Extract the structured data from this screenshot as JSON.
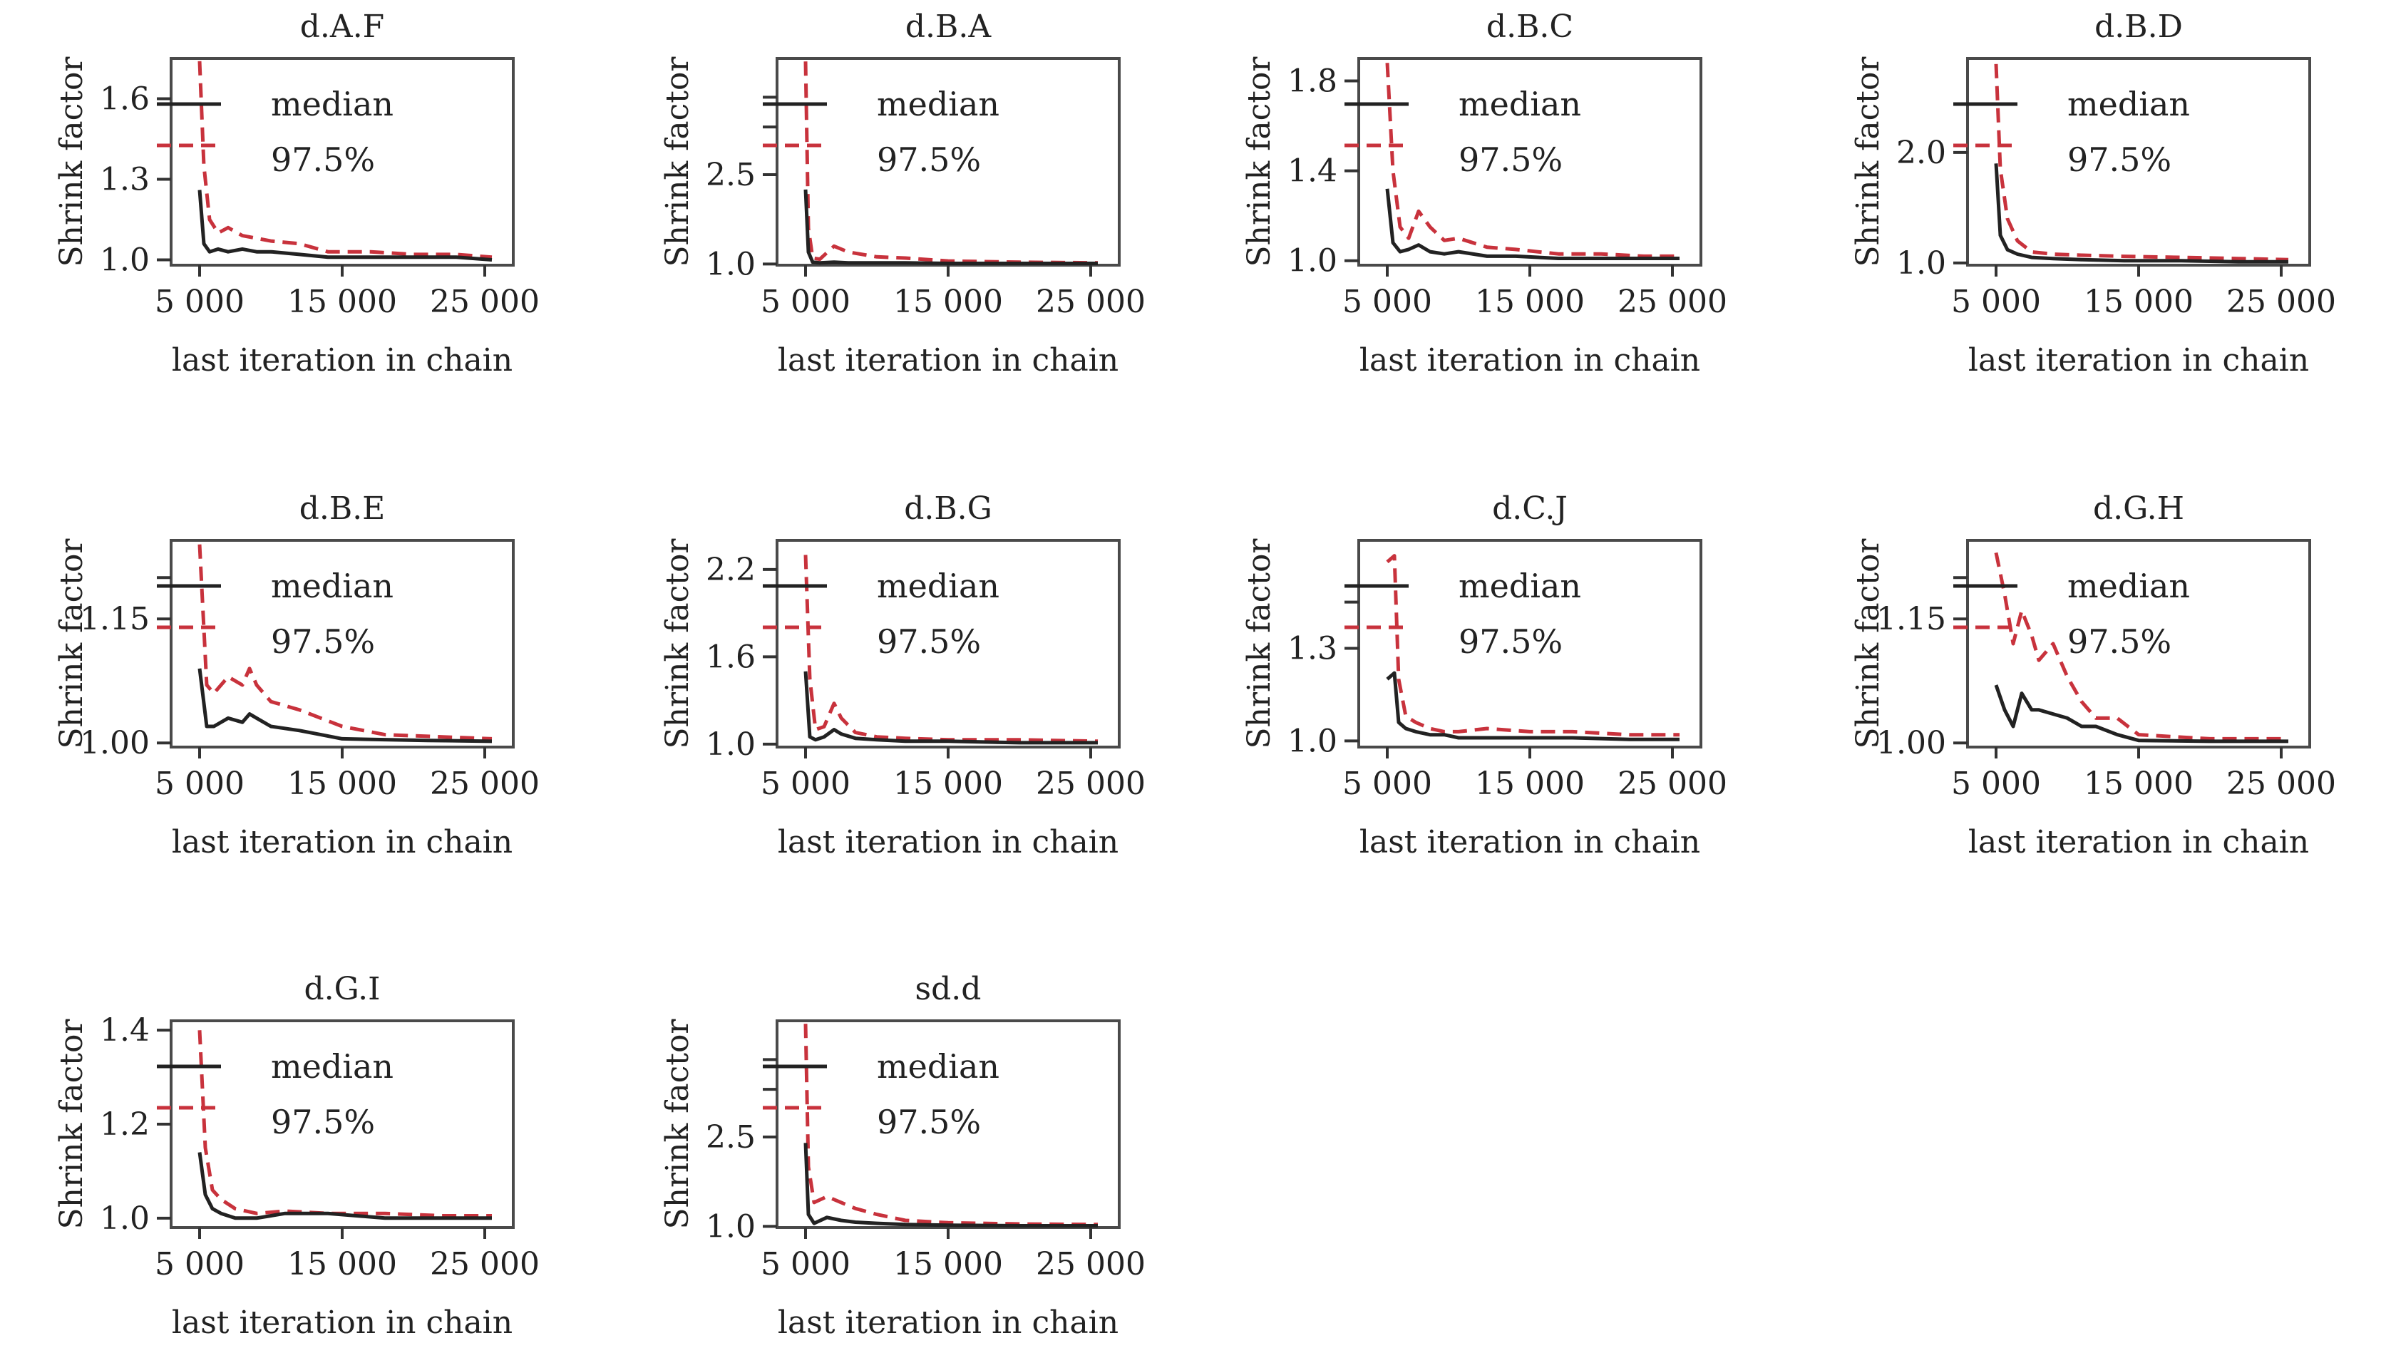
{
  "colors": {
    "median": "#222222",
    "q975": "#c8323c",
    "frame": "#4a4a4a"
  },
  "chart_data": [
    {
      "type": "line",
      "title": "d.A.F",
      "xlabel": "last iteration in chain",
      "ylabel": "Shrink factor",
      "xlim": [
        3000,
        27000
      ],
      "ylim": [
        0.98,
        1.75
      ],
      "xticks": [
        5000,
        15000,
        25000
      ],
      "xtick_labels": [
        "5 000",
        "15 000",
        "25 000"
      ],
      "yticks": [
        1.0,
        1.3,
        1.6
      ],
      "ytick_labels": [
        "1.0",
        "1.3",
        "1.6"
      ],
      "ytick_minor": [],
      "legend": {
        "position": "top-left",
        "entries": [
          "median",
          "97.5%"
        ]
      },
      "x": [
        5000,
        5300,
        5700,
        6300,
        7000,
        8000,
        9000,
        10000,
        12000,
        14000,
        17000,
        20000,
        23000,
        25500
      ],
      "series": [
        {
          "name": "median",
          "values": [
            1.26,
            1.06,
            1.03,
            1.04,
            1.03,
            1.04,
            1.03,
            1.03,
            1.02,
            1.01,
            1.01,
            1.01,
            1.01,
            1.0
          ]
        },
        {
          "name": "97.5%",
          "values": [
            1.74,
            1.35,
            1.15,
            1.1,
            1.12,
            1.09,
            1.08,
            1.07,
            1.06,
            1.03,
            1.03,
            1.02,
            1.02,
            1.01
          ]
        }
      ]
    },
    {
      "type": "line",
      "title": "d.B.A",
      "xlabel": "last iteration in chain",
      "ylabel": "Shrink factor",
      "xlim": [
        3000,
        27000
      ],
      "ylim": [
        0.98,
        4.45
      ],
      "xticks": [
        5000,
        15000,
        25000
      ],
      "xtick_labels": [
        "5 000",
        "15 000",
        "25 000"
      ],
      "yticks": [
        1.0,
        2.5
      ],
      "ytick_labels": [
        "1.0",
        "2.5"
      ],
      "ytick_minor": [
        3.3,
        3.8
      ],
      "legend": {
        "position": "top-left",
        "entries": [
          "median",
          "97.5%"
        ]
      },
      "x": [
        5000,
        5200,
        5500,
        6000,
        7000,
        8000,
        10000,
        12000,
        15000,
        20000,
        25500
      ],
      "series": [
        {
          "name": "median",
          "values": [
            2.25,
            1.2,
            1.03,
            1.02,
            1.03,
            1.02,
            1.02,
            1.02,
            1.01,
            1.01,
            1.01
          ]
        },
        {
          "name": "97.5%",
          "values": [
            4.4,
            1.6,
            1.1,
            1.08,
            1.3,
            1.2,
            1.12,
            1.1,
            1.05,
            1.03,
            1.02
          ]
        }
      ]
    },
    {
      "type": "line",
      "title": "d.B.C",
      "xlabel": "last iteration in chain",
      "ylabel": "Shrink factor",
      "xlim": [
        3000,
        27000
      ],
      "ylim": [
        0.98,
        1.9
      ],
      "xticks": [
        5000,
        15000,
        25000
      ],
      "xtick_labels": [
        "5 000",
        "15 000",
        "25 000"
      ],
      "yticks": [
        1.0,
        1.4,
        1.8
      ],
      "ytick_labels": [
        "1.0",
        "1.4",
        "1.8"
      ],
      "ytick_minor": [],
      "legend": {
        "position": "top-left",
        "entries": [
          "median",
          "97.5%"
        ]
      },
      "x": [
        5000,
        5400,
        5900,
        6500,
        7200,
        8000,
        9000,
        10000,
        12000,
        14000,
        17000,
        20000,
        23000,
        25500
      ],
      "series": [
        {
          "name": "median",
          "values": [
            1.32,
            1.08,
            1.04,
            1.05,
            1.07,
            1.04,
            1.03,
            1.04,
            1.02,
            1.02,
            1.01,
            1.01,
            1.01,
            1.01
          ]
        },
        {
          "name": "97.5%",
          "values": [
            1.88,
            1.4,
            1.15,
            1.1,
            1.22,
            1.15,
            1.09,
            1.1,
            1.06,
            1.05,
            1.03,
            1.03,
            1.02,
            1.02
          ]
        }
      ]
    },
    {
      "type": "line",
      "title": "d.B.D",
      "xlabel": "last iteration in chain",
      "ylabel": "Shrink factor",
      "xlim": [
        3000,
        27000
      ],
      "ylim": [
        0.98,
        2.85
      ],
      "xticks": [
        5000,
        15000,
        25000
      ],
      "xtick_labels": [
        "5 000",
        "15 000",
        "25 000"
      ],
      "yticks": [
        1.0,
        2.0
      ],
      "ytick_labels": [
        "1.0",
        "2.0"
      ],
      "ytick_minor": [],
      "legend": {
        "position": "top-left",
        "entries": [
          "median",
          "97.5%"
        ]
      },
      "x": [
        5000,
        5300,
        5800,
        6500,
        7500,
        9000,
        11000,
        14000,
        18000,
        22000,
        25500
      ],
      "series": [
        {
          "name": "median",
          "values": [
            1.9,
            1.25,
            1.12,
            1.08,
            1.05,
            1.04,
            1.03,
            1.02,
            1.02,
            1.01,
            1.01
          ]
        },
        {
          "name": "97.5%",
          "values": [
            2.8,
            1.85,
            1.4,
            1.2,
            1.1,
            1.08,
            1.07,
            1.06,
            1.05,
            1.04,
            1.03
          ]
        }
      ]
    },
    {
      "type": "line",
      "title": "d.B.E",
      "xlabel": "last iteration in chain",
      "ylabel": "Shrink factor",
      "xlim": [
        3000,
        27000
      ],
      "ylim": [
        0.995,
        1.245
      ],
      "xticks": [
        5000,
        15000,
        25000
      ],
      "xtick_labels": [
        "5 000",
        "15 000",
        "25 000"
      ],
      "yticks": [
        1.0,
        1.15
      ],
      "ytick_labels": [
        "1.00",
        "1.15"
      ],
      "ytick_minor": [
        1.2
      ],
      "legend": {
        "position": "top-left",
        "entries": [
          "median",
          "97.5%"
        ]
      },
      "x": [
        5000,
        5500,
        6000,
        7000,
        8000,
        8500,
        9000,
        10000,
        12000,
        13500,
        15000,
        18000,
        21000,
        25500
      ],
      "series": [
        {
          "name": "median",
          "values": [
            1.09,
            1.02,
            1.02,
            1.03,
            1.025,
            1.035,
            1.03,
            1.02,
            1.015,
            1.01,
            1.005,
            1.004,
            1.003,
            1.002
          ]
        },
        {
          "name": "97.5%",
          "values": [
            1.24,
            1.07,
            1.06,
            1.08,
            1.07,
            1.09,
            1.07,
            1.05,
            1.04,
            1.03,
            1.02,
            1.01,
            1.008,
            1.005
          ]
        }
      ]
    },
    {
      "type": "line",
      "title": "d.B.G",
      "xlabel": "last iteration in chain",
      "ylabel": "Shrink factor",
      "xlim": [
        3000,
        27000
      ],
      "ylim": [
        0.98,
        2.4
      ],
      "xticks": [
        5000,
        15000,
        25000
      ],
      "xtick_labels": [
        "5 000",
        "15 000",
        "25 000"
      ],
      "yticks": [
        1.0,
        1.6,
        2.2
      ],
      "ytick_labels": [
        "1.0",
        "1.6",
        "2.2"
      ],
      "ytick_minor": [],
      "legend": {
        "position": "top-left",
        "entries": [
          "median",
          "97.5%"
        ]
      },
      "x": [
        5000,
        5300,
        5700,
        6300,
        7000,
        7500,
        8500,
        10000,
        12000,
        15000,
        20000,
        25500
      ],
      "series": [
        {
          "name": "median",
          "values": [
            1.5,
            1.05,
            1.03,
            1.05,
            1.1,
            1.07,
            1.04,
            1.03,
            1.02,
            1.02,
            1.01,
            1.01
          ]
        },
        {
          "name": "97.5%",
          "values": [
            2.3,
            1.45,
            1.1,
            1.12,
            1.28,
            1.18,
            1.08,
            1.05,
            1.04,
            1.03,
            1.03,
            1.02
          ]
        }
      ]
    },
    {
      "type": "line",
      "title": "d.C.J",
      "xlabel": "last iteration in chain",
      "ylabel": "Shrink factor",
      "xlim": [
        3000,
        27000
      ],
      "ylim": [
        0.98,
        1.65
      ],
      "xticks": [
        5000,
        15000,
        25000
      ],
      "xtick_labels": [
        "5 000",
        "15 000",
        "25 000"
      ],
      "yticks": [
        1.0,
        1.3
      ],
      "ytick_labels": [
        "1.0",
        "1.3"
      ],
      "ytick_minor": [
        1.45
      ],
      "legend": {
        "position": "top-left",
        "entries": [
          "median",
          "97.5%"
        ]
      },
      "x": [
        5000,
        5500,
        5800,
        6300,
        7000,
        8000,
        9000,
        10000,
        12000,
        15000,
        18000,
        22000,
        25500
      ],
      "series": [
        {
          "name": "median",
          "values": [
            1.2,
            1.22,
            1.06,
            1.04,
            1.03,
            1.02,
            1.02,
            1.01,
            1.01,
            1.01,
            1.01,
            1.005,
            1.005
          ]
        },
        {
          "name": "97.5%",
          "values": [
            1.58,
            1.6,
            1.2,
            1.08,
            1.06,
            1.04,
            1.03,
            1.03,
            1.04,
            1.03,
            1.03,
            1.02,
            1.02
          ]
        }
      ]
    },
    {
      "type": "line",
      "title": "d.G.H",
      "xlabel": "last iteration in chain",
      "ylabel": "Shrink factor",
      "xlim": [
        3000,
        27000
      ],
      "ylim": [
        0.995,
        1.245
      ],
      "xticks": [
        5000,
        15000,
        25000
      ],
      "xtick_labels": [
        "5 000",
        "15 000",
        "25 000"
      ],
      "yticks": [
        1.0,
        1.15
      ],
      "ytick_labels": [
        "1.00",
        "1.15"
      ],
      "ytick_minor": [
        1.2
      ],
      "legend": {
        "position": "top-left",
        "entries": [
          "median",
          "97.5%"
        ]
      },
      "x": [
        5000,
        5600,
        6200,
        6800,
        7500,
        8000,
        9000,
        10000,
        11000,
        12000,
        13500,
        15000,
        20000,
        25500
      ],
      "series": [
        {
          "name": "median",
          "values": [
            1.07,
            1.04,
            1.02,
            1.06,
            1.04,
            1.04,
            1.035,
            1.03,
            1.02,
            1.02,
            1.01,
            1.003,
            1.002,
            1.002
          ]
        },
        {
          "name": "97.5%",
          "values": [
            1.23,
            1.18,
            1.12,
            1.16,
            1.13,
            1.1,
            1.12,
            1.08,
            1.05,
            1.03,
            1.03,
            1.01,
            1.005,
            1.005
          ]
        }
      ]
    },
    {
      "type": "line",
      "title": "d.G.I",
      "xlabel": "last iteration in chain",
      "ylabel": "Shrink factor",
      "xlim": [
        3000,
        27000
      ],
      "ylim": [
        0.98,
        1.42
      ],
      "xticks": [
        5000,
        15000,
        25000
      ],
      "xtick_labels": [
        "5 000",
        "15 000",
        "25 000"
      ],
      "yticks": [
        1.0,
        1.2,
        1.4
      ],
      "ytick_labels": [
        "1.0",
        "1.2",
        "1.4"
      ],
      "ytick_minor": [],
      "legend": {
        "position": "top-left",
        "entries": [
          "median",
          "97.5%"
        ]
      },
      "x": [
        5000,
        5400,
        5900,
        6500,
        7500,
        9000,
        11000,
        14000,
        18000,
        22000,
        25500
      ],
      "series": [
        {
          "name": "median",
          "values": [
            1.14,
            1.05,
            1.02,
            1.01,
            1.0,
            1.0,
            1.01,
            1.01,
            1.0,
            1.0,
            1.0
          ]
        },
        {
          "name": "97.5%",
          "values": [
            1.4,
            1.15,
            1.06,
            1.04,
            1.02,
            1.01,
            1.015,
            1.01,
            1.01,
            1.005,
            1.005
          ]
        }
      ]
    },
    {
      "type": "line",
      "title": "sd.d",
      "xlabel": "last iteration in chain",
      "ylabel": "Shrink factor",
      "xlim": [
        3000,
        27000
      ],
      "ylim": [
        0.98,
        4.45
      ],
      "xticks": [
        5000,
        15000,
        25000
      ],
      "xtick_labels": [
        "5 000",
        "15 000",
        "25 000"
      ],
      "yticks": [
        1.0,
        2.5
      ],
      "ytick_labels": [
        "1.0",
        "2.5"
      ],
      "ytick_minor": [
        3.3,
        3.8
      ],
      "legend": {
        "position": "top-left",
        "entries": [
          "median",
          "97.5%"
        ]
      },
      "x": [
        5000,
        5200,
        5600,
        6500,
        7500,
        8500,
        10000,
        12000,
        15000,
        20000,
        25500
      ],
      "series": [
        {
          "name": "median",
          "values": [
            2.4,
            1.2,
            1.05,
            1.15,
            1.1,
            1.07,
            1.05,
            1.03,
            1.02,
            1.01,
            1.01
          ]
        },
        {
          "name": "97.5%",
          "values": [
            4.4,
            2.0,
            1.4,
            1.5,
            1.4,
            1.3,
            1.2,
            1.1,
            1.06,
            1.04,
            1.03
          ]
        }
      ]
    }
  ]
}
